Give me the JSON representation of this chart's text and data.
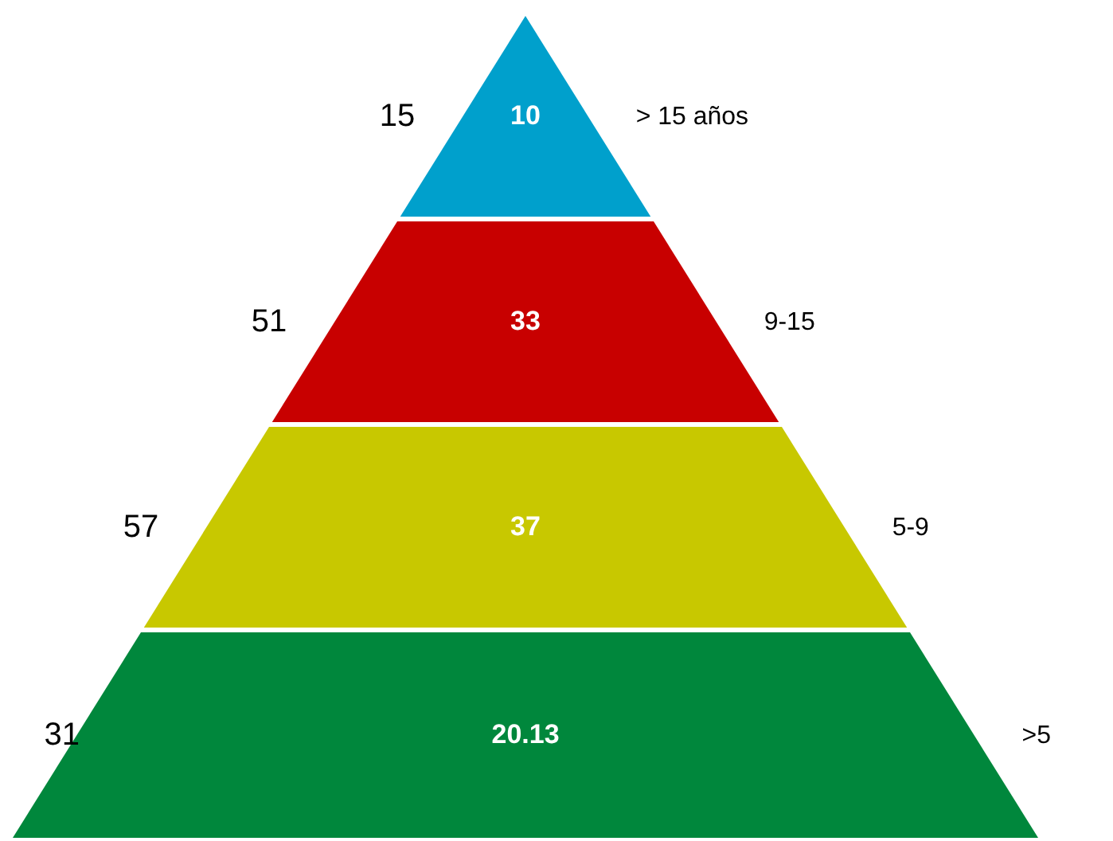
{
  "chart_data": {
    "type": "other",
    "categories": [
      "> 15 años",
      "9-15",
      "5-9",
      ">5"
    ],
    "series": [
      {
        "values": [
          15,
          51,
          57,
          31
        ]
      },
      {
        "values": [
          10,
          33,
          37,
          20.13
        ],
        "colors": [
          "#00a0cc",
          "#c80000",
          "#c8c800",
          "#00873c"
        ]
      }
    ],
    "data_labels": true
  }
}
